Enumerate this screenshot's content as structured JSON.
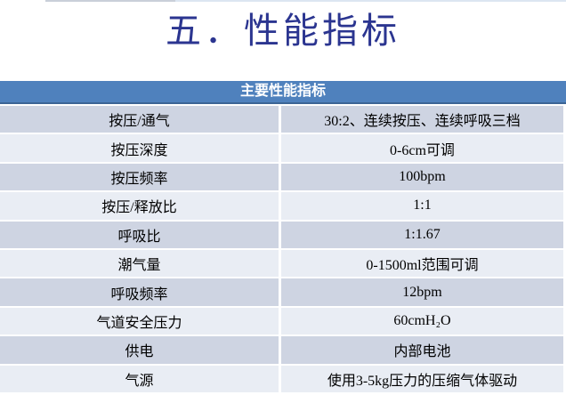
{
  "title": "五．性能指标",
  "table": {
    "header": "主要性能指标",
    "rows": [
      {
        "label": "按压/通气",
        "value": "30:2、连续按压、连续呼吸三档"
      },
      {
        "label": "按压深度",
        "value": "0-6cm可调"
      },
      {
        "label": "按压频率",
        "value": "100bpm"
      },
      {
        "label": "按压/释放比",
        "value": "1:1"
      },
      {
        "label": "呼吸比",
        "value": "1:1.67"
      },
      {
        "label": "潮气量",
        "value": "0-1500ml范围可调"
      },
      {
        "label": "呼吸频率",
        "value": "12bpm"
      },
      {
        "label": "气道安全压力",
        "value": "60cmH₂O"
      },
      {
        "label": "供电",
        "value": "内部电池"
      },
      {
        "label": "气源",
        "value": "使用3-5kg压力的压缩气体驱动"
      }
    ]
  },
  "colors": {
    "header_bg": "#4F81BD",
    "header_border": "#3C6595",
    "row_dark": "#CED4E2",
    "row_light": "#E9EDF4",
    "title_color": "#2B3590",
    "top_gray": "#C9CFD9",
    "top_blue": "#DCE6F1"
  }
}
